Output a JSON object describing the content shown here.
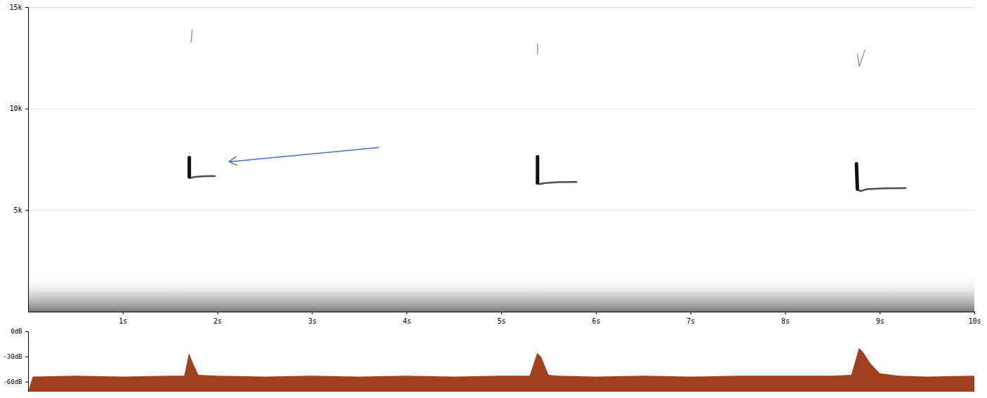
{
  "chart_data": [
    {
      "type": "spectrogram",
      "xlim": [
        0,
        10
      ],
      "xticks": [
        {
          "value": 1,
          "label": "1s"
        },
        {
          "value": 2,
          "label": "2s"
        },
        {
          "value": 3,
          "label": "3s"
        },
        {
          "value": 4,
          "label": "4s"
        },
        {
          "value": 5,
          "label": "5s"
        },
        {
          "value": 6,
          "label": "6s"
        },
        {
          "value": 7,
          "label": "7s"
        },
        {
          "value": 8,
          "label": "8s"
        },
        {
          "value": 9,
          "label": "9s"
        },
        {
          "value": 10,
          "label": "10s"
        }
      ],
      "ylim": [
        0,
        15000
      ],
      "yticks": [
        {
          "value": 5000,
          "label": "5k"
        },
        {
          "value": 10000,
          "label": "10k"
        },
        {
          "value": 15000,
          "label": "15k"
        }
      ],
      "grid": true,
      "color": "#111111",
      "calls": [
        {
          "time": [
            1.7,
            1.7,
            1.71,
            1.76,
            1.86,
            1.97
          ],
          "frequency": [
            7600,
            6650,
            6600,
            6650,
            6690,
            6700
          ]
        },
        {
          "time": [
            5.38,
            5.38,
            5.4,
            5.46,
            5.6,
            5.79
          ],
          "frequency": [
            7650,
            6350,
            6300,
            6350,
            6390,
            6400
          ]
        },
        {
          "time": [
            8.75,
            8.76,
            8.79,
            8.86,
            9.05,
            9.27
          ],
          "frequency": [
            7300,
            6050,
            5950,
            6050,
            6090,
            6100
          ]
        }
      ],
      "faint_marks": [
        {
          "time": [
            1.72,
            1.73
          ],
          "frequency": [
            13300,
            13900
          ]
        },
        {
          "time": [
            5.38,
            5.38
          ],
          "frequency": [
            12700,
            13200
          ]
        },
        {
          "time": [
            8.76,
            8.78,
            8.84
          ],
          "frequency": [
            12700,
            12100,
            12900
          ]
        }
      ],
      "noise_band": [
        0,
        1800
      ],
      "annotations": [
        {
          "type": "arrow",
          "x1": 3.7,
          "y1": 8100,
          "x2": 2.12,
          "y2": 7400,
          "color": "#4472c4"
        }
      ]
    },
    {
      "type": "area",
      "x": [
        0,
        0.05,
        0.5,
        1.0,
        1.5,
        1.65,
        1.7,
        1.75,
        1.8,
        2.0,
        2.5,
        3.0,
        3.5,
        4.0,
        4.5,
        5.0,
        5.3,
        5.38,
        5.42,
        5.5,
        5.6,
        6.0,
        6.5,
        7.0,
        7.5,
        8.0,
        8.5,
        8.7,
        8.78,
        8.82,
        8.9,
        9.0,
        9.2,
        9.5,
        10
      ],
      "values": [
        -72,
        -54,
        -53,
        -54,
        -53,
        -53,
        -26,
        -40,
        -52,
        -53,
        -54,
        -53,
        -54,
        -53,
        -54,
        -53,
        -53,
        -26,
        -30,
        -52,
        -53,
        -54,
        -53,
        -54,
        -53,
        -53,
        -53,
        -52,
        -20,
        -24,
        -38,
        -50,
        -53,
        -54,
        -53
      ],
      "color": "#a0401f",
      "xlim": [
        0,
        10
      ],
      "ylim": [
        -72,
        0
      ],
      "yticks": [
        {
          "value": 0,
          "label": "0dB"
        },
        {
          "value": -30,
          "label": "-30dB"
        },
        {
          "value": -60,
          "label": "-60dB"
        }
      ],
      "tick_labels": "y"
    }
  ]
}
